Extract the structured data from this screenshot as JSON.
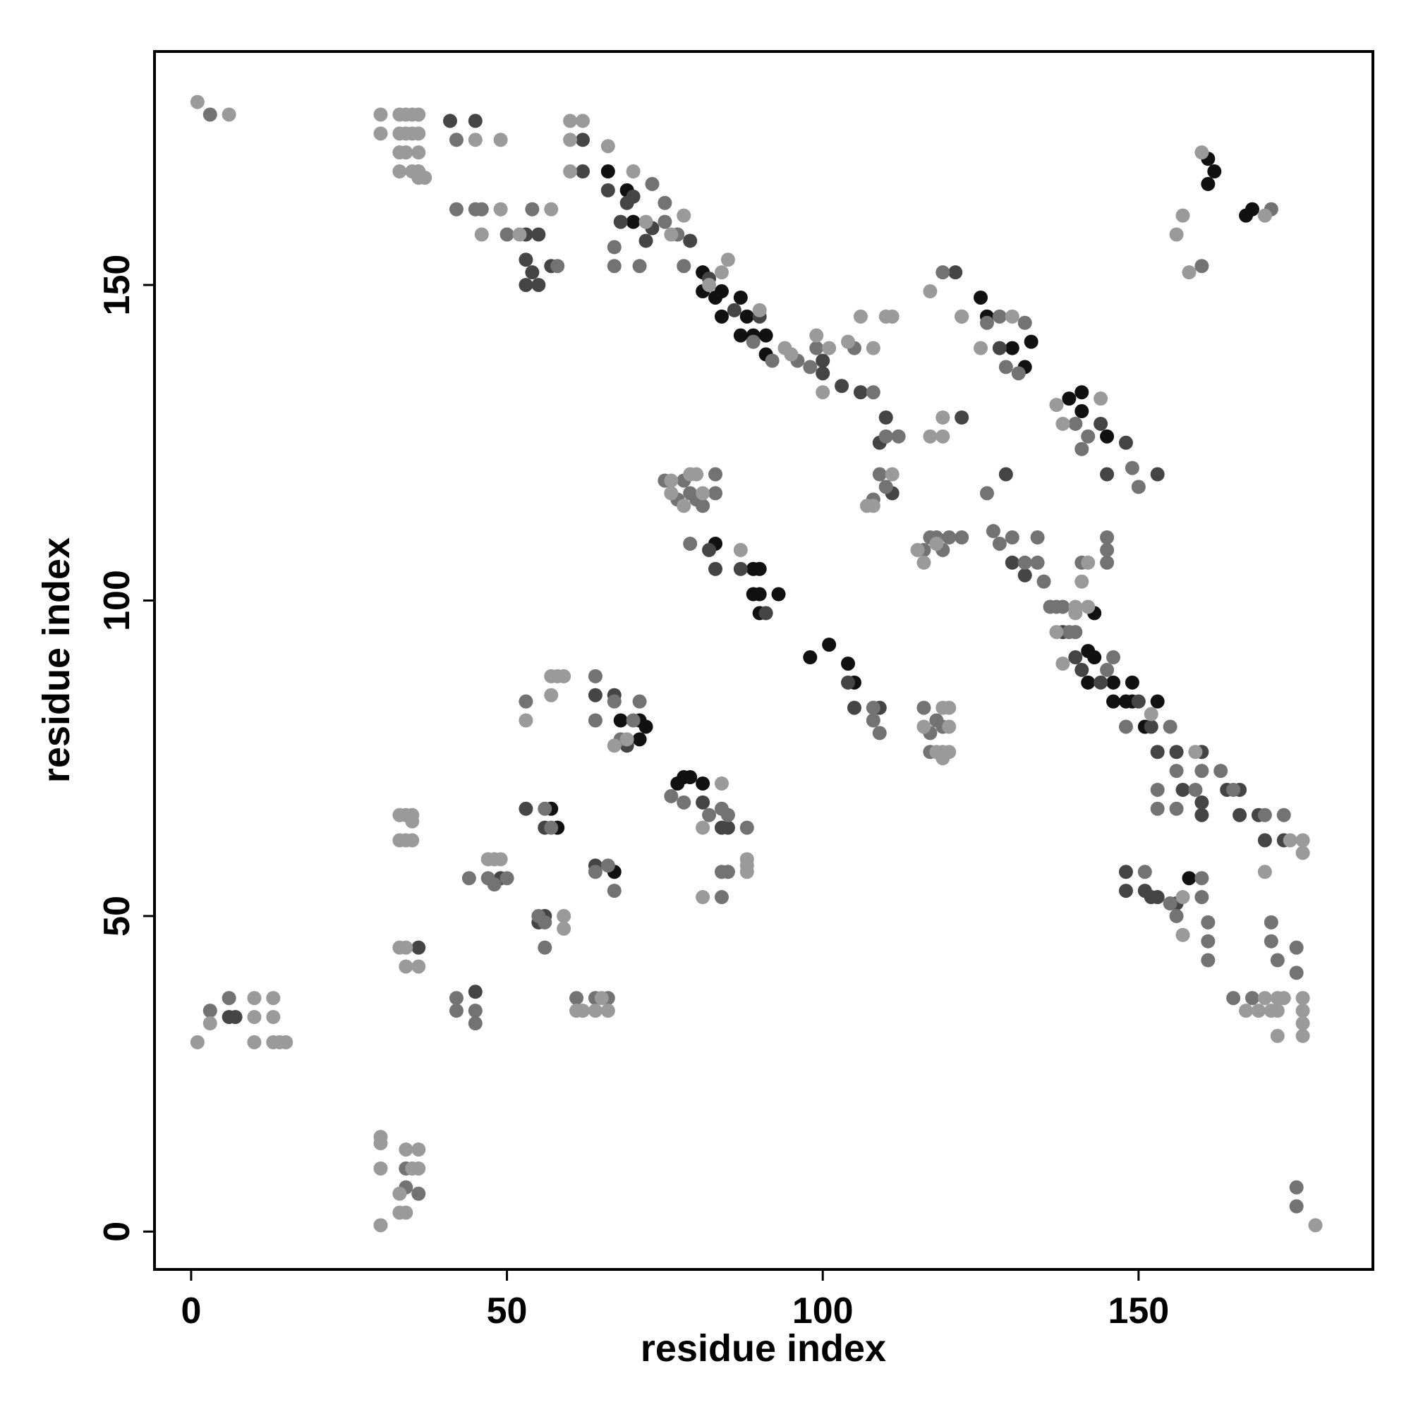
{
  "chart_data": {
    "type": "scatter",
    "xlabel": "residue index",
    "ylabel": "residue index",
    "xlim": [
      -5.8,
      187.1
    ],
    "ylim": [
      -6,
      187
    ],
    "xticks": [
      0,
      50,
      100,
      150
    ],
    "yticks": [
      0,
      50,
      100,
      150
    ],
    "series": [
      {
        "color": "#111111",
        "x": [
          66,
          69,
          70,
          81,
          84,
          83,
          87,
          84,
          88,
          89,
          91,
          91,
          81,
          87,
          101,
          98,
          104,
          105,
          89,
          90,
          90,
          93,
          89,
          90,
          83,
          71,
          71,
          72,
          68,
          78,
          79,
          81,
          77,
          57,
          58,
          67,
          133,
          132,
          130,
          125,
          126,
          141,
          139,
          145,
          141,
          143,
          142,
          143,
          142,
          146,
          146,
          149,
          149,
          148,
          151,
          153,
          161,
          162,
          161,
          167,
          168,
          158
        ],
        "y": [
          168,
          165,
          160,
          152,
          149,
          148,
          148,
          145,
          145,
          142,
          142,
          139,
          149,
          142,
          93,
          91,
          90,
          87,
          101,
          101,
          98,
          101,
          105,
          105,
          109,
          78,
          81,
          80,
          81,
          72,
          72,
          71,
          71,
          67,
          64,
          57,
          141,
          137,
          140,
          148,
          145,
          133,
          132,
          126,
          130,
          98,
          92,
          91,
          87,
          87,
          84,
          87,
          84,
          84,
          80,
          84,
          170,
          168,
          166,
          161,
          162,
          56
        ]
      },
      {
        "color": "#454545",
        "x": [
          66,
          70,
          72,
          68,
          69,
          73,
          79,
          82,
          86,
          90,
          53,
          55,
          54,
          53,
          55,
          53,
          62,
          62,
          106,
          110,
          109,
          111,
          122,
          121,
          122,
          128,
          144,
          145,
          148,
          153,
          129,
          130,
          132,
          138,
          140,
          141,
          144,
          150,
          152,
          153,
          156,
          157,
          160,
          164,
          166,
          170,
          148,
          148,
          151,
          152,
          153,
          57,
          83,
          82,
          87,
          91,
          104,
          105,
          109,
          67,
          69,
          64,
          81,
          84,
          85,
          53,
          56,
          64,
          49,
          55,
          56,
          36,
          45,
          7,
          6,
          41,
          45,
          100,
          100,
          103,
          160,
          166,
          169,
          173,
          160,
          156
        ],
        "y": [
          165,
          164,
          157,
          160,
          163,
          159,
          157,
          151,
          146,
          145,
          158,
          158,
          152,
          154,
          150,
          150,
          168,
          173,
          133,
          129,
          125,
          117,
          129,
          152,
          145,
          140,
          128,
          120,
          125,
          120,
          120,
          106,
          104,
          95,
          91,
          89,
          87,
          84,
          80,
          76,
          76,
          70,
          66,
          70,
          66,
          62,
          57,
          54,
          54,
          53,
          53,
          153,
          105,
          108,
          105,
          98,
          87,
          83,
          83,
          85,
          77,
          85,
          68,
          64,
          64,
          67,
          64,
          58,
          56,
          49,
          50,
          45,
          38,
          34,
          34,
          176,
          176,
          138,
          136,
          134,
          76,
          70,
          66,
          62,
          68,
          52
        ]
      },
      {
        "color": "#737373",
        "x": [
          3,
          42,
          42,
          45,
          46,
          50,
          54,
          58,
          67,
          67,
          71,
          78,
          73,
          75,
          75,
          77,
          89,
          92,
          96,
          98,
          99,
          105,
          108,
          110,
          112,
          108,
          110,
          109,
          119,
          126,
          128,
          132,
          131,
          130,
          128,
          132,
          134,
          135,
          136,
          137,
          138,
          139,
          140,
          141,
          145,
          146,
          145,
          148,
          155,
          156,
          156,
          159,
          160,
          163,
          165,
          170,
          173,
          153,
          153,
          151,
          155,
          156,
          160,
          160,
          161,
          161,
          161,
          165,
          168,
          171,
          171,
          172,
          175,
          175,
          175,
          175,
          118,
          117,
          120,
          119,
          122,
          116,
          117,
          118,
          116,
          117,
          119,
          108,
          109,
          108,
          79,
          78,
          80,
          79,
          81,
          83,
          83,
          75,
          77,
          53,
          64,
          64,
          67,
          68,
          70,
          71,
          76,
          78,
          82,
          84,
          85,
          88,
          84,
          85,
          84,
          56,
          57,
          64,
          66,
          67,
          47,
          48,
          50,
          44,
          55,
          56,
          56,
          42,
          42,
          45,
          45,
          61,
          64,
          66,
          3,
          6,
          34,
          34,
          36,
          149,
          150,
          142,
          141,
          140,
          145,
          145,
          126,
          127,
          134,
          129,
          160,
          171
        ],
        "y": [
          177,
          173,
          162,
          162,
          162,
          158,
          162,
          153,
          156,
          153,
          153,
          153,
          166,
          163,
          160,
          158,
          141,
          138,
          138,
          137,
          140,
          140,
          133,
          126,
          126,
          116,
          118,
          120,
          152,
          144,
          145,
          144,
          136,
          110,
          109,
          106,
          106,
          103,
          99,
          99,
          99,
          95,
          95,
          106,
          106,
          91,
          89,
          80,
          80,
          73,
          67,
          70,
          73,
          73,
          70,
          66,
          66,
          70,
          67,
          57,
          52,
          50,
          56,
          53,
          49,
          46,
          43,
          37,
          37,
          49,
          46,
          43,
          45,
          41,
          7,
          4,
          110,
          110,
          110,
          108,
          110,
          108,
          76,
          81,
          83,
          79,
          80,
          81,
          79,
          83,
          109,
          119,
          116,
          117,
          115,
          117,
          120,
          119,
          116,
          84,
          88,
          81,
          84,
          78,
          81,
          84,
          69,
          68,
          66,
          67,
          66,
          64,
          57,
          57,
          53,
          67,
          64,
          57,
          58,
          54,
          56,
          55,
          56,
          56,
          50,
          49,
          45,
          37,
          35,
          35,
          33,
          37,
          37,
          37,
          35,
          37,
          7,
          10,
          6,
          121,
          118,
          126,
          124,
          128,
          110,
          108,
          117,
          111,
          110,
          137,
          153,
          162
        ]
      },
      {
        "color": "#9a9a9a",
        "x": [
          1,
          6,
          30,
          30,
          33,
          34,
          35,
          36,
          33,
          34,
          35,
          36,
          33,
          34,
          36,
          33,
          35,
          36,
          36,
          37,
          45,
          49,
          49,
          46,
          52,
          57,
          60,
          62,
          60,
          60,
          66,
          70,
          72,
          76,
          78,
          84,
          85,
          82,
          90,
          94,
          101,
          104,
          106,
          110,
          111,
          100,
          95,
          99,
          108,
          107,
          108,
          111,
          117,
          119,
          119,
          117,
          122,
          125,
          130,
          137,
          138,
          144,
          115,
          116,
          118,
          140,
          142,
          140,
          138,
          137,
          152,
          159,
          167,
          169,
          170,
          171,
          172,
          172,
          173,
          172,
          176,
          176,
          176,
          176,
          170,
          176,
          176,
          174,
          157,
          157,
          178,
          76,
          76,
          78,
          79,
          80,
          81,
          87,
          116,
          119,
          120,
          120,
          118,
          119,
          120,
          119,
          57,
          58,
          59,
          57,
          53,
          67,
          69,
          81,
          84,
          88,
          88,
          88,
          81,
          47,
          48,
          49,
          59,
          59,
          33,
          34,
          35,
          33,
          34,
          35,
          35,
          33,
          34,
          34,
          36,
          61,
          62,
          64,
          65,
          66,
          1,
          3,
          10,
          10,
          10,
          13,
          13,
          13,
          14,
          15,
          30,
          30,
          30,
          30,
          34,
          36,
          35,
          36,
          33,
          33,
          34,
          157,
          156,
          158,
          160,
          170,
          142,
          141
        ],
        "y": [
          179,
          177,
          177,
          174,
          177,
          177,
          177,
          177,
          174,
          174,
          174,
          174,
          171,
          171,
          171,
          168,
          168,
          168,
          167,
          167,
          173,
          173,
          162,
          158,
          158,
          162,
          176,
          176,
          173,
          168,
          172,
          168,
          160,
          158,
          161,
          152,
          154,
          150,
          146,
          140,
          140,
          141,
          145,
          145,
          145,
          133,
          139,
          142,
          140,
          115,
          115,
          120,
          126,
          126,
          129,
          149,
          145,
          140,
          145,
          131,
          128,
          132,
          108,
          106,
          109,
          99,
          99,
          98,
          90,
          95,
          82,
          76,
          35,
          35,
          37,
          35,
          37,
          35,
          37,
          31,
          37,
          35,
          33,
          31,
          57,
          62,
          60,
          62,
          53,
          47,
          1,
          117,
          119,
          115,
          120,
          120,
          117,
          108,
          80,
          83,
          83,
          80,
          76,
          76,
          76,
          75,
          88,
          88,
          88,
          85,
          81,
          77,
          78,
          64,
          71,
          59,
          58,
          57,
          53,
          59,
          59,
          59,
          50,
          48,
          66,
          66,
          66,
          62,
          62,
          62,
          65,
          45,
          45,
          42,
          42,
          35,
          35,
          35,
          37,
          35,
          30,
          33,
          37,
          34,
          30,
          37,
          34,
          30,
          30,
          30,
          15,
          14,
          10,
          1,
          13,
          13,
          10,
          10,
          6,
          3,
          3,
          161,
          158,
          152,
          171,
          161,
          106,
          103
        ]
      }
    ]
  }
}
